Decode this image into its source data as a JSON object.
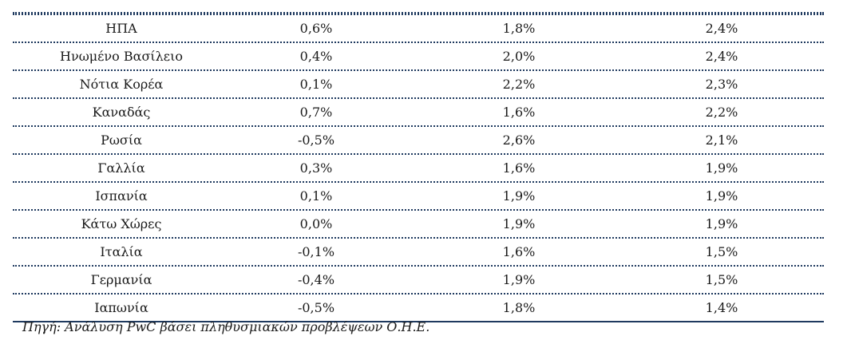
{
  "table": {
    "rows": [
      {
        "country": "ΗΠΑ",
        "v1": "0,6%",
        "v2": "1,8%",
        "v3": "2,4%"
      },
      {
        "country": "Ηνωμένο Βασίλειο",
        "v1": "0,4%",
        "v2": "2,0%",
        "v3": "2,4%"
      },
      {
        "country": "Νότια Κορέα",
        "v1": "0,1%",
        "v2": "2,2%",
        "v3": "2,3%"
      },
      {
        "country": "Καναδάς",
        "v1": "0,7%",
        "v2": "1,6%",
        "v3": "2,2%"
      },
      {
        "country": "Ρωσία",
        "v1": "-0,5%",
        "v2": "2,6%",
        "v3": "2,1%"
      },
      {
        "country": "Γαλλία",
        "v1": "0,3%",
        "v2": "1,6%",
        "v3": "1,9%"
      },
      {
        "country": "Ισπανία",
        "v1": "0,1%",
        "v2": "1,9%",
        "v3": "1,9%"
      },
      {
        "country": "Κάτω Χώρες",
        "v1": "0,0%",
        "v2": "1,9%",
        "v3": "1,9%"
      },
      {
        "country": "Ιταλία",
        "v1": "-0,1%",
        "v2": "1,6%",
        "v3": "1,5%"
      },
      {
        "country": "Γερμανία",
        "v1": "-0,4%",
        "v2": "1,9%",
        "v3": "1,5%"
      },
      {
        "country": "Ιαπωνία",
        "v1": "-0,5%",
        "v2": "1,8%",
        "v3": "1,4%"
      }
    ]
  },
  "source": "Πηγή: Ανάλυση PwC βάσει πληθυσμιακών προβλέψεων Ο.Η.Ε.",
  "colors": {
    "rule": "#1f3a5f",
    "text": "#1a1a1a"
  }
}
